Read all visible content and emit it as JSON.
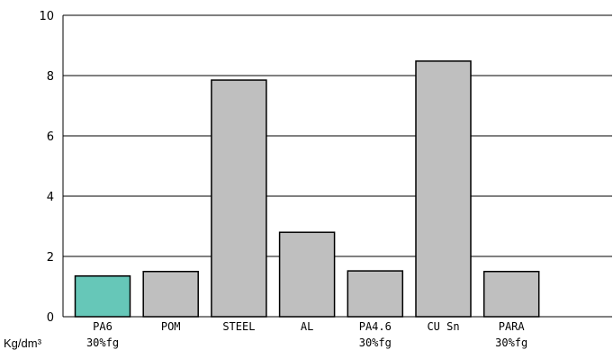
{
  "chart_data": {
    "type": "bar",
    "categories": [
      {
        "line1": "PA6",
        "line2": "30%fg"
      },
      {
        "line1": "POM",
        "line2": ""
      },
      {
        "line1": "STEEL",
        "line2": ""
      },
      {
        "line1": "AL",
        "line2": ""
      },
      {
        "line1": "PA4.6",
        "line2": "30%fg"
      },
      {
        "line1": "CU Sn",
        "line2": ""
      },
      {
        "line1": "PARA",
        "line2": "30%fg"
      }
    ],
    "values": [
      1.35,
      1.5,
      7.85,
      2.8,
      1.52,
      8.48,
      1.5
    ],
    "bar_colors": [
      "#66c7b8",
      "#bfbfbf",
      "#bfbfbf",
      "#bfbfbf",
      "#bfbfbf",
      "#bfbfbf",
      "#bfbfbf"
    ],
    "ylim": [
      0,
      10
    ],
    "yticks": [
      0,
      2,
      4,
      6,
      8,
      10
    ],
    "unit_label": "Kg/dm³",
    "title": "",
    "xlabel": "",
    "ylabel": "",
    "grid": "horizontal"
  }
}
